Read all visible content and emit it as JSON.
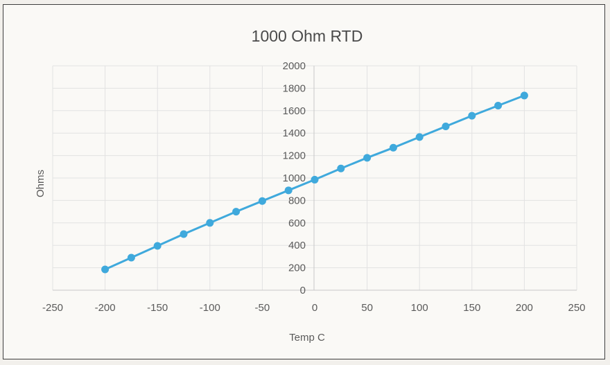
{
  "chart_data": {
    "type": "scatter",
    "title": "1000 Ohm RTD",
    "xlabel": "Temp C",
    "ylabel": "Ohms",
    "xlim": [
      -250,
      250
    ],
    "ylim": [
      0,
      2000
    ],
    "xticks": [
      -250,
      -200,
      -150,
      -100,
      -50,
      0,
      50,
      100,
      150,
      200,
      250
    ],
    "yticks": [
      0,
      200,
      400,
      600,
      800,
      1000,
      1200,
      1400,
      1600,
      1800,
      2000
    ],
    "grid": true,
    "legend": "none",
    "series_color": "#3fa9dc",
    "series": [
      {
        "x": [
          -200,
          -175,
          -150,
          -125,
          -100,
          -75,
          -50,
          -25,
          0,
          25,
          50,
          75,
          100,
          125,
          150,
          175,
          200
        ],
        "y": [
          185,
          290,
          395,
          500,
          600,
          700,
          795,
          890,
          985,
          1085,
          1180,
          1270,
          1365,
          1460,
          1555,
          1645,
          1735
        ]
      }
    ]
  }
}
